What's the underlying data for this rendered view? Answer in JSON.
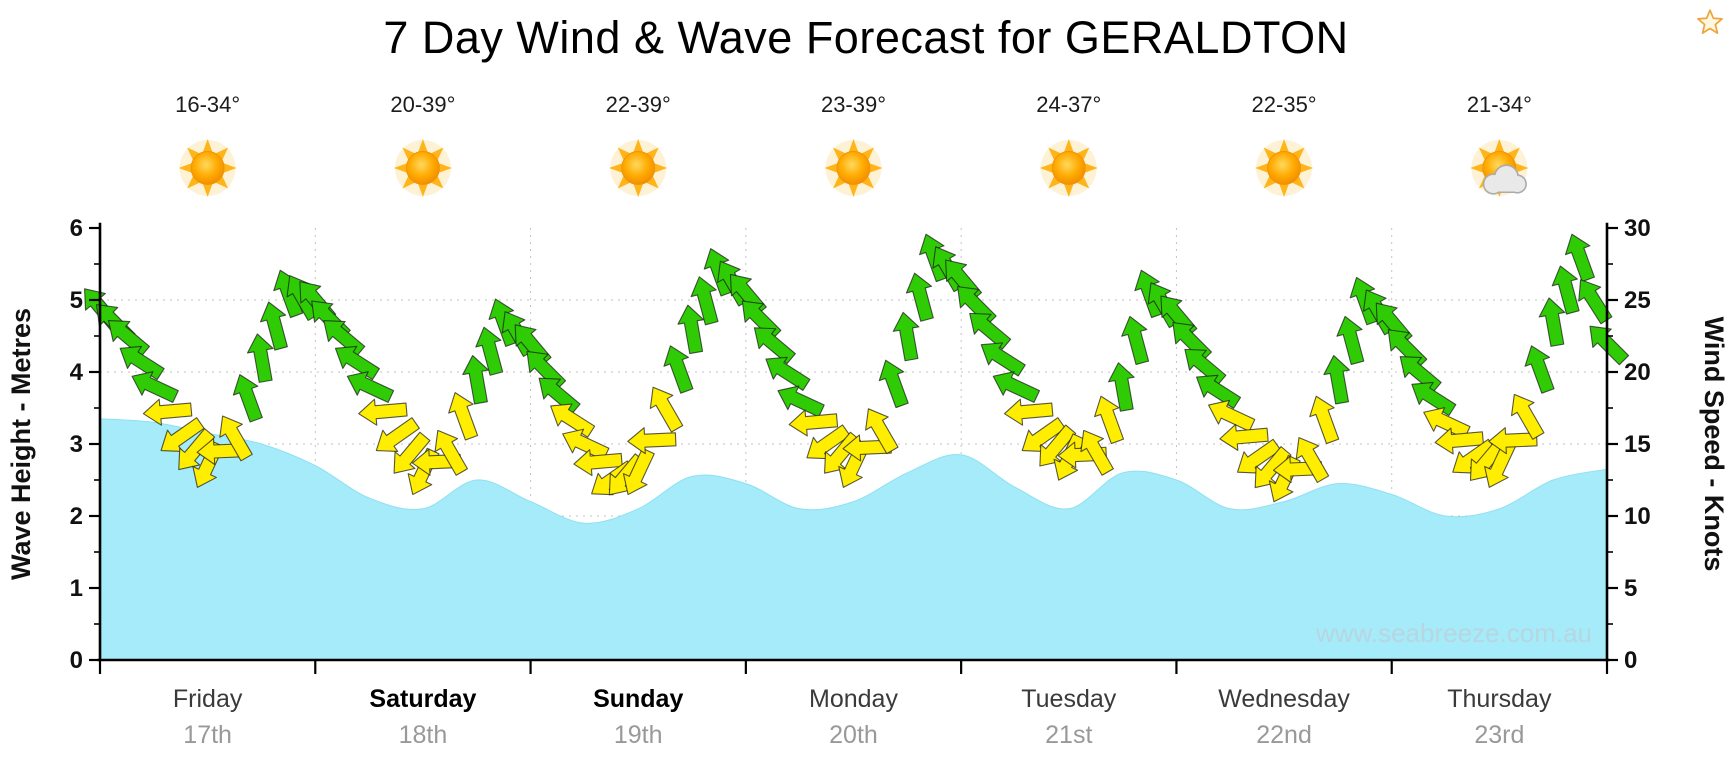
{
  "title": "7 Day Wind & Wave Forecast for GERALDTON",
  "header": {
    "favorite_icon": "star-outline",
    "favorite_color": "#eda53c"
  },
  "days": [
    {
      "name": "Friday",
      "date": "17th",
      "temp": "16-34°",
      "icon": "sun",
      "bold": false
    },
    {
      "name": "Saturday",
      "date": "18th",
      "temp": "20-39°",
      "icon": "sun",
      "bold": true
    },
    {
      "name": "Sunday",
      "date": "19th",
      "temp": "22-39°",
      "icon": "sun",
      "bold": true
    },
    {
      "name": "Monday",
      "date": "20th",
      "temp": "23-39°",
      "icon": "sun",
      "bold": false
    },
    {
      "name": "Tuesday",
      "date": "21st",
      "temp": "24-37°",
      "icon": "sun",
      "bold": false
    },
    {
      "name": "Wednesday",
      "date": "22nd",
      "temp": "22-35°",
      "icon": "sun",
      "bold": false
    },
    {
      "name": "Thursday",
      "date": "23rd",
      "temp": "21-34°",
      "icon": "sun-cloud",
      "bold": false
    }
  ],
  "chart_data": {
    "type": "area",
    "title": "7 Day Wind & Wave Forecast for GERALDTON",
    "x_unit": "hours from Friday 00:00",
    "x_range": [
      0,
      168
    ],
    "x_day_ticks": [
      "Friday 17th",
      "Saturday 18th",
      "Sunday 19th",
      "Monday 20th",
      "Tuesday 21st",
      "Wednesday 22nd",
      "Thursday 23rd"
    ],
    "left_axis": {
      "label": "Wave Height - Metres",
      "range": [
        0,
        6
      ],
      "ticks": [
        0,
        1,
        2,
        3,
        4,
        5,
        6
      ]
    },
    "right_axis": {
      "label": "Wind Speed - Knots",
      "range": [
        0,
        30
      ],
      "ticks": [
        0,
        5,
        10,
        15,
        20,
        25,
        30
      ]
    },
    "gridlines": true,
    "watermark": "www.seabreeze.com.au",
    "series": [
      {
        "name": "Wave Height",
        "type": "area",
        "unit": "m",
        "axis": "left",
        "color": "#a5ebf9",
        "points": [
          [
            0,
            3.35
          ],
          [
            6,
            3.3
          ],
          [
            12,
            3.15
          ],
          [
            18,
            3.0
          ],
          [
            24,
            2.7
          ],
          [
            30,
            2.25
          ],
          [
            36,
            2.1
          ],
          [
            42,
            2.5
          ],
          [
            48,
            2.2
          ],
          [
            54,
            1.9
          ],
          [
            60,
            2.1
          ],
          [
            66,
            2.55
          ],
          [
            72,
            2.45
          ],
          [
            78,
            2.1
          ],
          [
            84,
            2.2
          ],
          [
            90,
            2.6
          ],
          [
            96,
            2.85
          ],
          [
            102,
            2.4
          ],
          [
            108,
            2.1
          ],
          [
            114,
            2.6
          ],
          [
            120,
            2.5
          ],
          [
            126,
            2.1
          ],
          [
            132,
            2.2
          ],
          [
            138,
            2.45
          ],
          [
            144,
            2.3
          ],
          [
            150,
            2.0
          ],
          [
            156,
            2.1
          ],
          [
            162,
            2.5
          ],
          [
            168,
            2.65
          ]
        ]
      },
      {
        "name": "Wind Speed",
        "type": "wind-arrows",
        "unit": "kt",
        "axis": "right",
        "colors": {
          "light": "#ffee00",
          "strong": "#2fcc05",
          "strong_threshold_kt": 18
        },
        "dir_note": "third value = bearing the arrow points toward, 0=N up, clockwise",
        "points": [
          [
            0,
            24.5,
            320
          ],
          [
            3,
            22.5,
            310
          ],
          [
            6,
            19,
            295
          ],
          [
            9,
            15.5,
            235
          ],
          [
            12,
            13.5,
            205
          ],
          [
            15,
            15.5,
            330
          ],
          [
            18,
            21,
            350
          ],
          [
            21,
            25.5,
            340
          ],
          [
            24,
            25,
            320
          ],
          [
            27,
            22.5,
            310
          ],
          [
            30,
            19,
            295
          ],
          [
            33,
            15.5,
            235
          ],
          [
            36,
            13,
            205
          ],
          [
            39,
            14.5,
            330
          ],
          [
            42,
            19.5,
            350
          ],
          [
            45,
            23.5,
            340
          ],
          [
            48,
            22,
            320
          ],
          [
            51,
            18.5,
            310
          ],
          [
            54,
            15,
            295
          ],
          [
            57,
            12.5,
            235
          ],
          [
            60,
            13,
            205
          ],
          [
            63,
            17.5,
            330
          ],
          [
            66,
            23,
            350
          ],
          [
            69,
            27,
            340
          ],
          [
            72,
            25.5,
            320
          ],
          [
            75,
            22,
            310
          ],
          [
            78,
            18,
            295
          ],
          [
            81,
            15,
            235
          ],
          [
            84,
            13.5,
            205
          ],
          [
            87,
            16,
            330
          ],
          [
            90,
            22.5,
            350
          ],
          [
            93,
            28,
            340
          ],
          [
            96,
            26.5,
            320
          ],
          [
            99,
            23,
            310
          ],
          [
            102,
            19,
            295
          ],
          [
            105,
            15.5,
            235
          ],
          [
            108,
            14,
            205
          ],
          [
            111,
            14.5,
            330
          ],
          [
            114,
            19,
            350
          ],
          [
            117,
            25.5,
            340
          ],
          [
            120,
            24,
            320
          ],
          [
            123,
            20.5,
            310
          ],
          [
            126,
            17,
            295
          ],
          [
            129,
            14,
            235
          ],
          [
            132,
            12.5,
            205
          ],
          [
            135,
            14,
            330
          ],
          [
            138,
            19.5,
            350
          ],
          [
            141,
            25,
            340
          ],
          [
            144,
            23.5,
            320
          ],
          [
            147,
            20,
            310
          ],
          [
            150,
            16.5,
            295
          ],
          [
            153,
            14,
            235
          ],
          [
            156,
            13.5,
            205
          ],
          [
            159,
            17,
            330
          ],
          [
            162,
            23.5,
            350
          ],
          [
            165,
            28,
            340
          ],
          [
            168,
            22,
            315
          ]
        ]
      }
    ]
  }
}
